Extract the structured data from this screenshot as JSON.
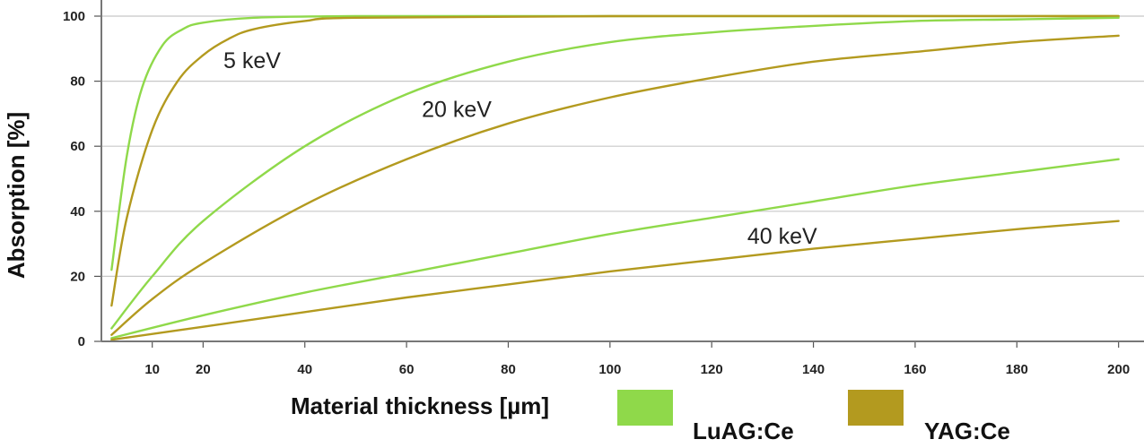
{
  "chart_data": {
    "type": "line",
    "title": "",
    "xlabel": "Material thickness [µm]",
    "ylabel": "Absorption [%]",
    "xlim": [
      0,
      205
    ],
    "ylim": [
      0,
      100
    ],
    "x_ticks": [
      10,
      20,
      40,
      60,
      80,
      100,
      120,
      140,
      160,
      180,
      200
    ],
    "y_ticks": [
      0,
      20,
      40,
      60,
      80,
      100
    ],
    "grid": "horizontal",
    "legend_position": "bottom",
    "colors": {
      "LuAG:Ce": "#8fd94a",
      "YAG:Ce": "#b39a1f"
    },
    "series": [
      {
        "name": "LuAG:Ce",
        "energy": "5 keV",
        "x": [
          2,
          5,
          8,
          12,
          16,
          20,
          30,
          50,
          100,
          200
        ],
        "values": [
          22,
          57,
          78,
          91,
          96,
          98,
          99.5,
          100,
          100,
          100
        ]
      },
      {
        "name": "YAG:Ce",
        "energy": "5 keV",
        "x": [
          2,
          5,
          10,
          15,
          20,
          25,
          30,
          40,
          50,
          100,
          200
        ],
        "values": [
          11,
          38,
          65,
          80,
          88,
          93,
          96,
          98.5,
          99.5,
          100,
          100
        ]
      },
      {
        "name": "LuAG:Ce",
        "energy": "20 keV",
        "x": [
          2,
          10,
          20,
          40,
          60,
          80,
          100,
          120,
          140,
          160,
          180,
          200
        ],
        "values": [
          4,
          20,
          37,
          60,
          76,
          86,
          92,
          95,
          97,
          98.5,
          99,
          99.5
        ]
      },
      {
        "name": "YAG:Ce",
        "energy": "20 keV",
        "x": [
          2,
          10,
          20,
          40,
          60,
          80,
          100,
          120,
          140,
          160,
          180,
          200
        ],
        "values": [
          2,
          13,
          24,
          42,
          56,
          67,
          75,
          81,
          86,
          89,
          92,
          94
        ]
      },
      {
        "name": "LuAG:Ce",
        "energy": "40 keV",
        "x": [
          2,
          20,
          40,
          60,
          80,
          100,
          120,
          140,
          160,
          180,
          200
        ],
        "values": [
          1,
          8,
          15,
          21,
          27,
          33,
          38,
          43,
          48,
          52,
          56
        ]
      },
      {
        "name": "YAG:Ce",
        "energy": "40 keV",
        "x": [
          2,
          20,
          40,
          60,
          80,
          100,
          120,
          140,
          160,
          180,
          200
        ],
        "values": [
          0.5,
          4.5,
          9,
          13.5,
          17.5,
          21.5,
          25,
          28.5,
          31.5,
          34.5,
          37
        ]
      }
    ],
    "annotations": [
      {
        "text": "5 keV",
        "x": 24,
        "y": 84
      },
      {
        "text": "20 keV",
        "x": 63,
        "y": 69
      },
      {
        "text": "40 keV",
        "x": 127,
        "y": 30
      }
    ]
  },
  "legend": {
    "title": "Material thickness [µm]",
    "items": [
      {
        "label": "LuAG:Ce",
        "color": "#8fd94a"
      },
      {
        "label": "YAG:Ce",
        "color": "#b39a1f"
      }
    ]
  }
}
